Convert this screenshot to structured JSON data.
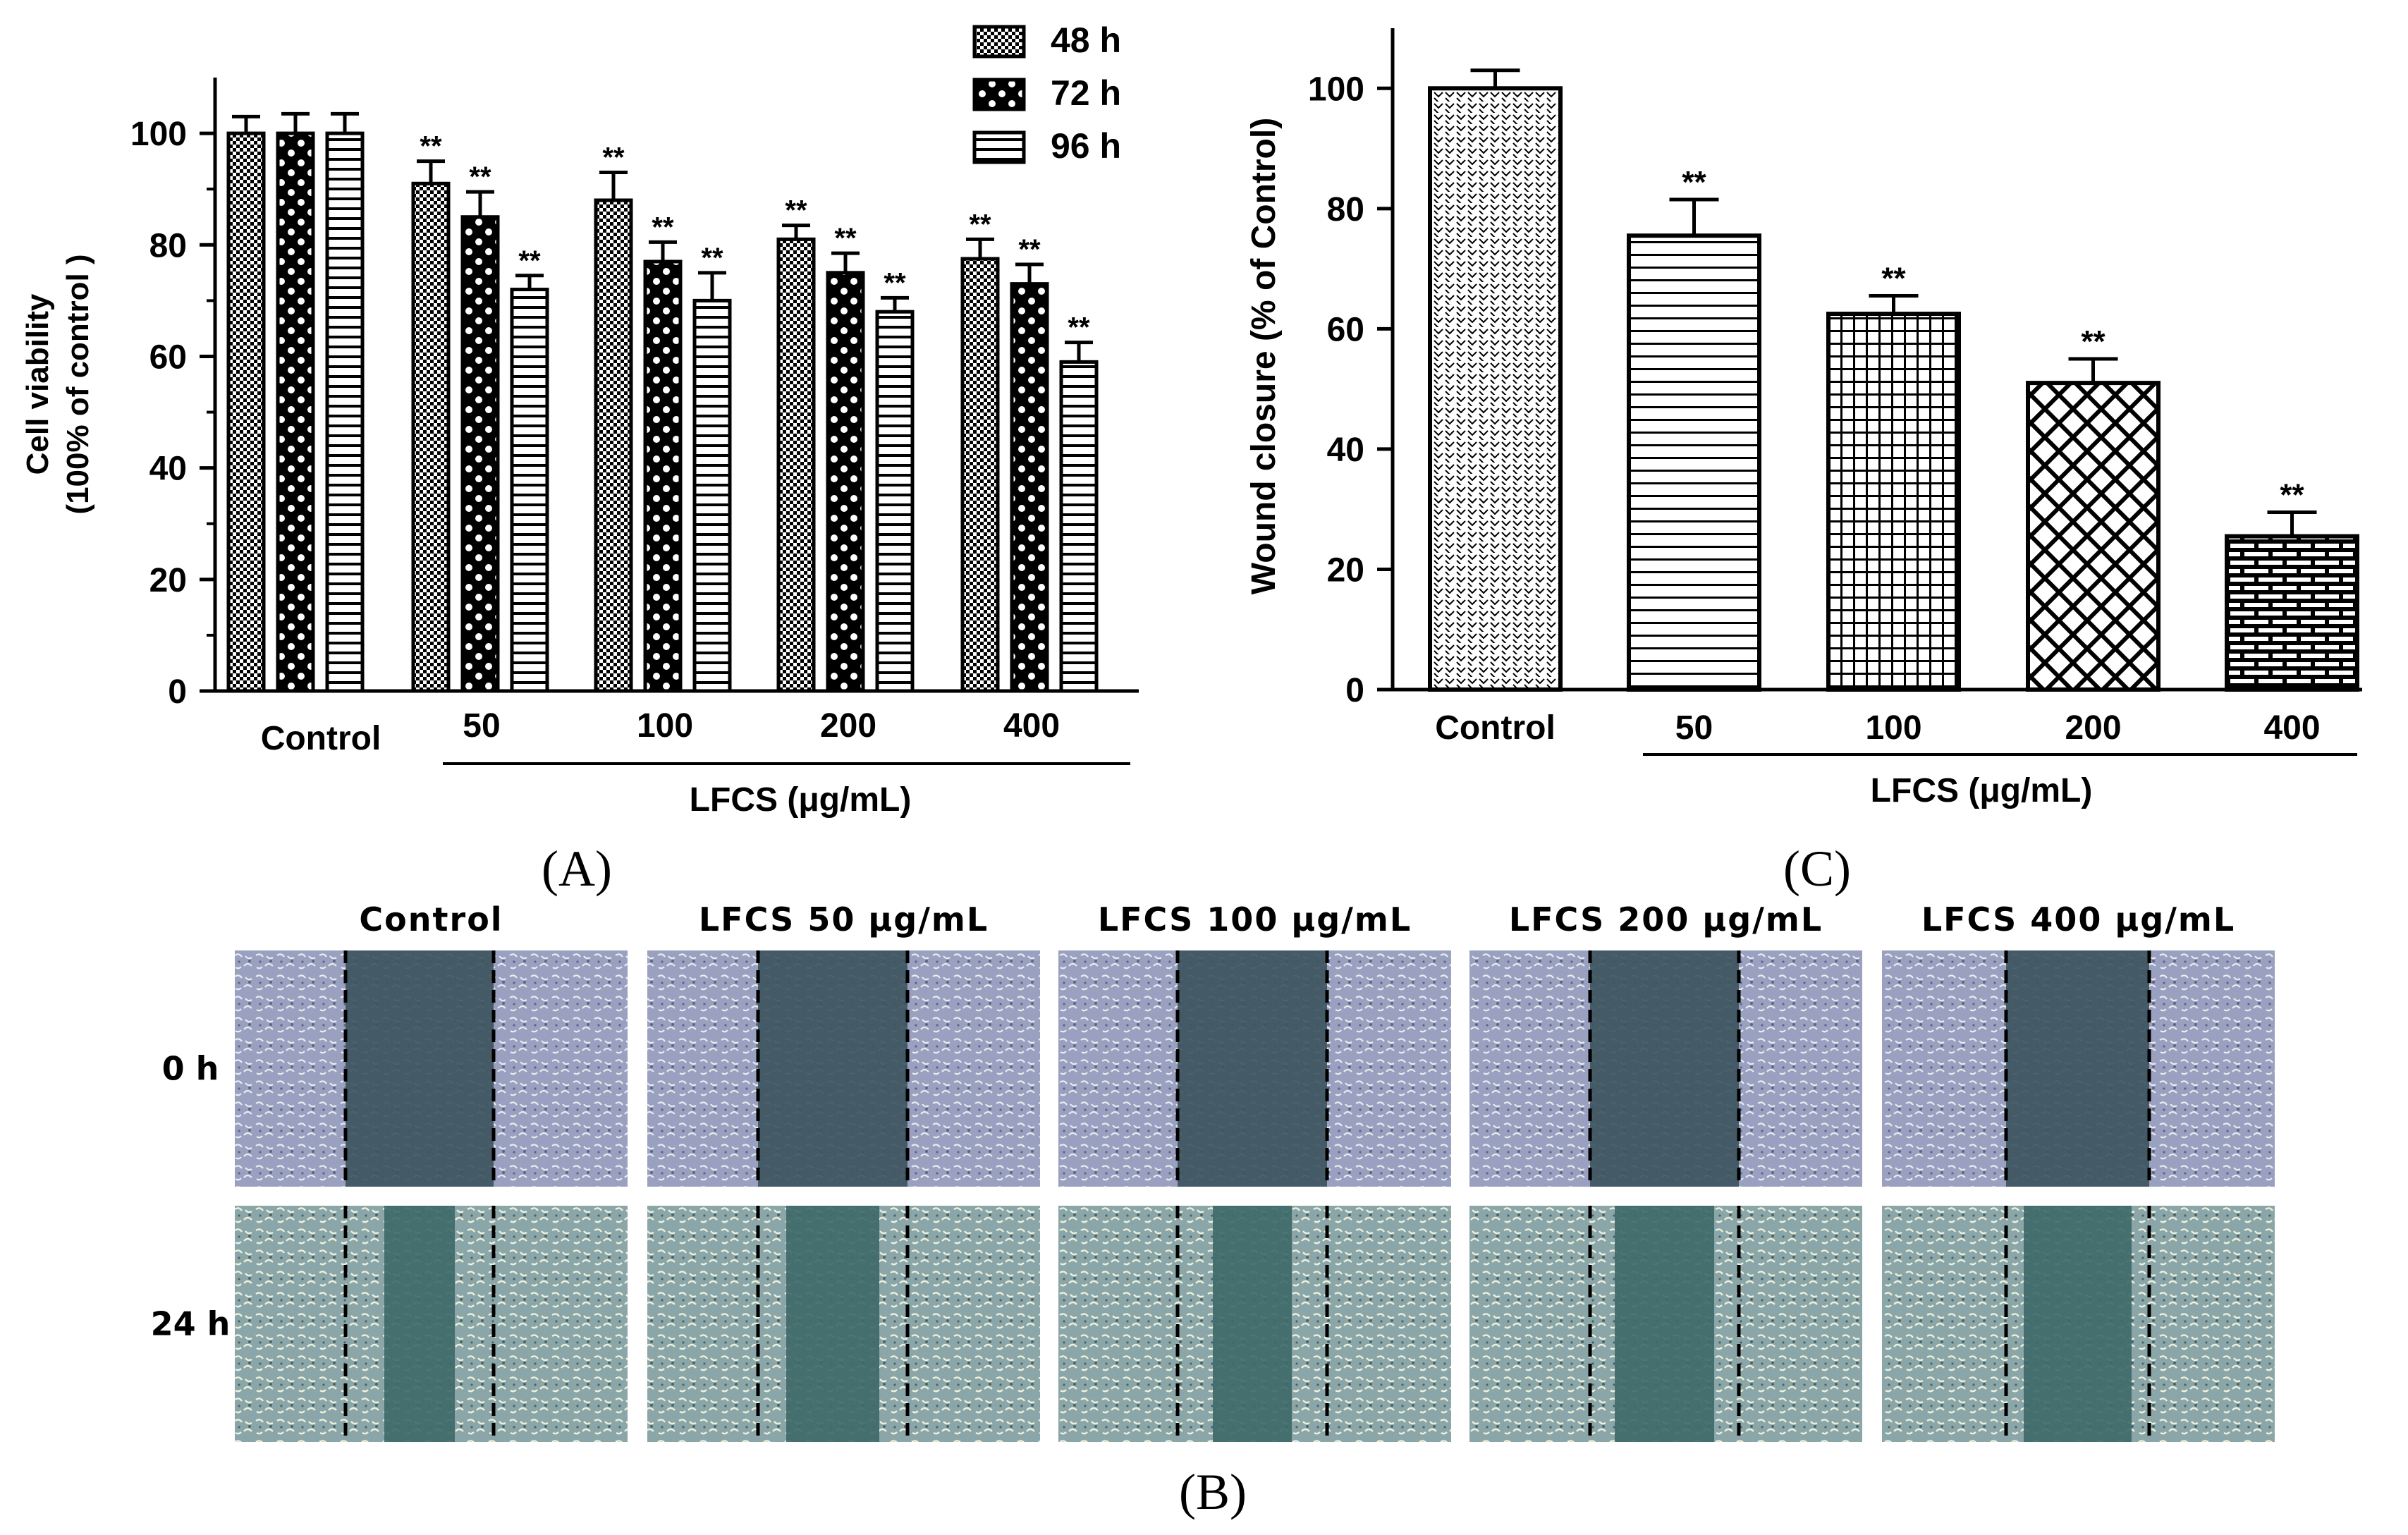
{
  "panel_labels": {
    "a": "(A)",
    "b": "(B)",
    "c": "(C)"
  },
  "chart_data": [
    {
      "type": "bar",
      "panel": "A",
      "ylabel_line1": "Cell viability",
      "ylabel_line2": "(100% of control )",
      "xlabel": "LFCS (μg/mL)",
      "categories": [
        "Control",
        "50",
        "100",
        "200",
        "400"
      ],
      "yticks": [
        "0",
        "20",
        "40",
        "60",
        "80",
        "100"
      ],
      "ylim": [
        0,
        110
      ],
      "series": [
        {
          "name": "48 h",
          "values": [
            100,
            91,
            88,
            81,
            77.5
          ],
          "errors": [
            3,
            4,
            5,
            2.5,
            3.5
          ]
        },
        {
          "name": "72 h",
          "values": [
            100,
            85,
            77,
            75,
            73
          ],
          "errors": [
            3.5,
            4.5,
            3.5,
            3.5,
            3.5
          ]
        },
        {
          "name": "96 h",
          "values": [
            100,
            72,
            70,
            68,
            59
          ],
          "errors": [
            3.5,
            2.5,
            5,
            2.5,
            3.5
          ]
        }
      ],
      "significance": [
        [
          "",
          "**",
          "**",
          "**",
          "**"
        ],
        [
          "",
          "**",
          "**",
          "**",
          "**"
        ],
        [
          "",
          "**",
          "**",
          "**",
          "**"
        ]
      ],
      "legend_position": "top-right"
    },
    {
      "type": "bar",
      "panel": "C",
      "ylabel": "Wound closure (% of Control)",
      "xlabel": "LFCS (μg/mL)",
      "categories": [
        "Control",
        "50",
        "100",
        "200",
        "400"
      ],
      "yticks": [
        "0",
        "20",
        "40",
        "60",
        "80",
        "100"
      ],
      "ylim": [
        0,
        110
      ],
      "values": [
        100,
        75.5,
        62.5,
        51,
        25.5
      ],
      "errors": [
        3,
        6,
        3,
        4,
        4
      ],
      "significance": [
        "",
        "**",
        "**",
        "**",
        "**"
      ]
    }
  ],
  "micrographs": {
    "columns": [
      "Control",
      "LFCS 50 μg/mL",
      "LFCS 100 μg/mL",
      "LFCS 200 μg/mL",
      "LFCS 400 μg/mL"
    ],
    "rows": [
      "0 h",
      "24 h"
    ]
  },
  "colors": {
    "ink": "#000000",
    "micrograph_cells": "#8a8fb0",
    "micrograph_gap": "#3f5a60"
  }
}
